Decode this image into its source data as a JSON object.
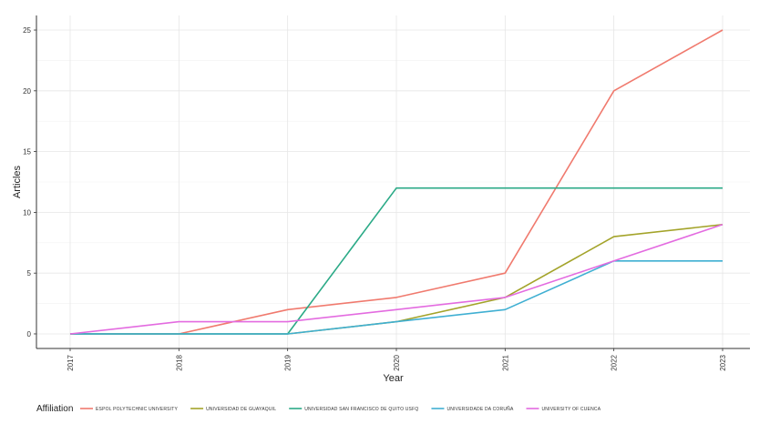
{
  "chart_data": {
    "type": "line",
    "xlabel": "Year",
    "ylabel": "Articles",
    "x": [
      "2017",
      "2018",
      "2019",
      "2020",
      "2021",
      "2022",
      "2023"
    ],
    "yticks": [
      "0",
      "5",
      "10",
      "15",
      "20",
      "25"
    ],
    "ylim": [
      -1.2,
      26.2
    ],
    "grid": true,
    "legend": {
      "title": "Affiliation",
      "placement": "bottom"
    },
    "series": [
      {
        "name": "ESPOL POLYTECHNIC UNIVERSITY",
        "color": "#F07A6E",
        "values": [
          0,
          0,
          2,
          3,
          5,
          20,
          25
        ]
      },
      {
        "name": "UNIVERSIDAD DE GUAYAQUIL",
        "color": "#A3A329",
        "values": [
          0,
          0,
          0,
          1,
          3,
          8,
          9
        ]
      },
      {
        "name": "UNIVERSIDAD SAN FRANCISCO DE QUITO USFQ",
        "color": "#2BAA87",
        "values": [
          0,
          0,
          0,
          12,
          12,
          12,
          12
        ]
      },
      {
        "name": "UNIVERSIDADE DA CORUÑA",
        "color": "#3FAFD2",
        "values": [
          0,
          0,
          0,
          1,
          2,
          6,
          6
        ]
      },
      {
        "name": "UNIVERSITY OF CUENCA",
        "color": "#E36BE0",
        "values": [
          0,
          1,
          1,
          2,
          3,
          6,
          9
        ]
      }
    ]
  }
}
